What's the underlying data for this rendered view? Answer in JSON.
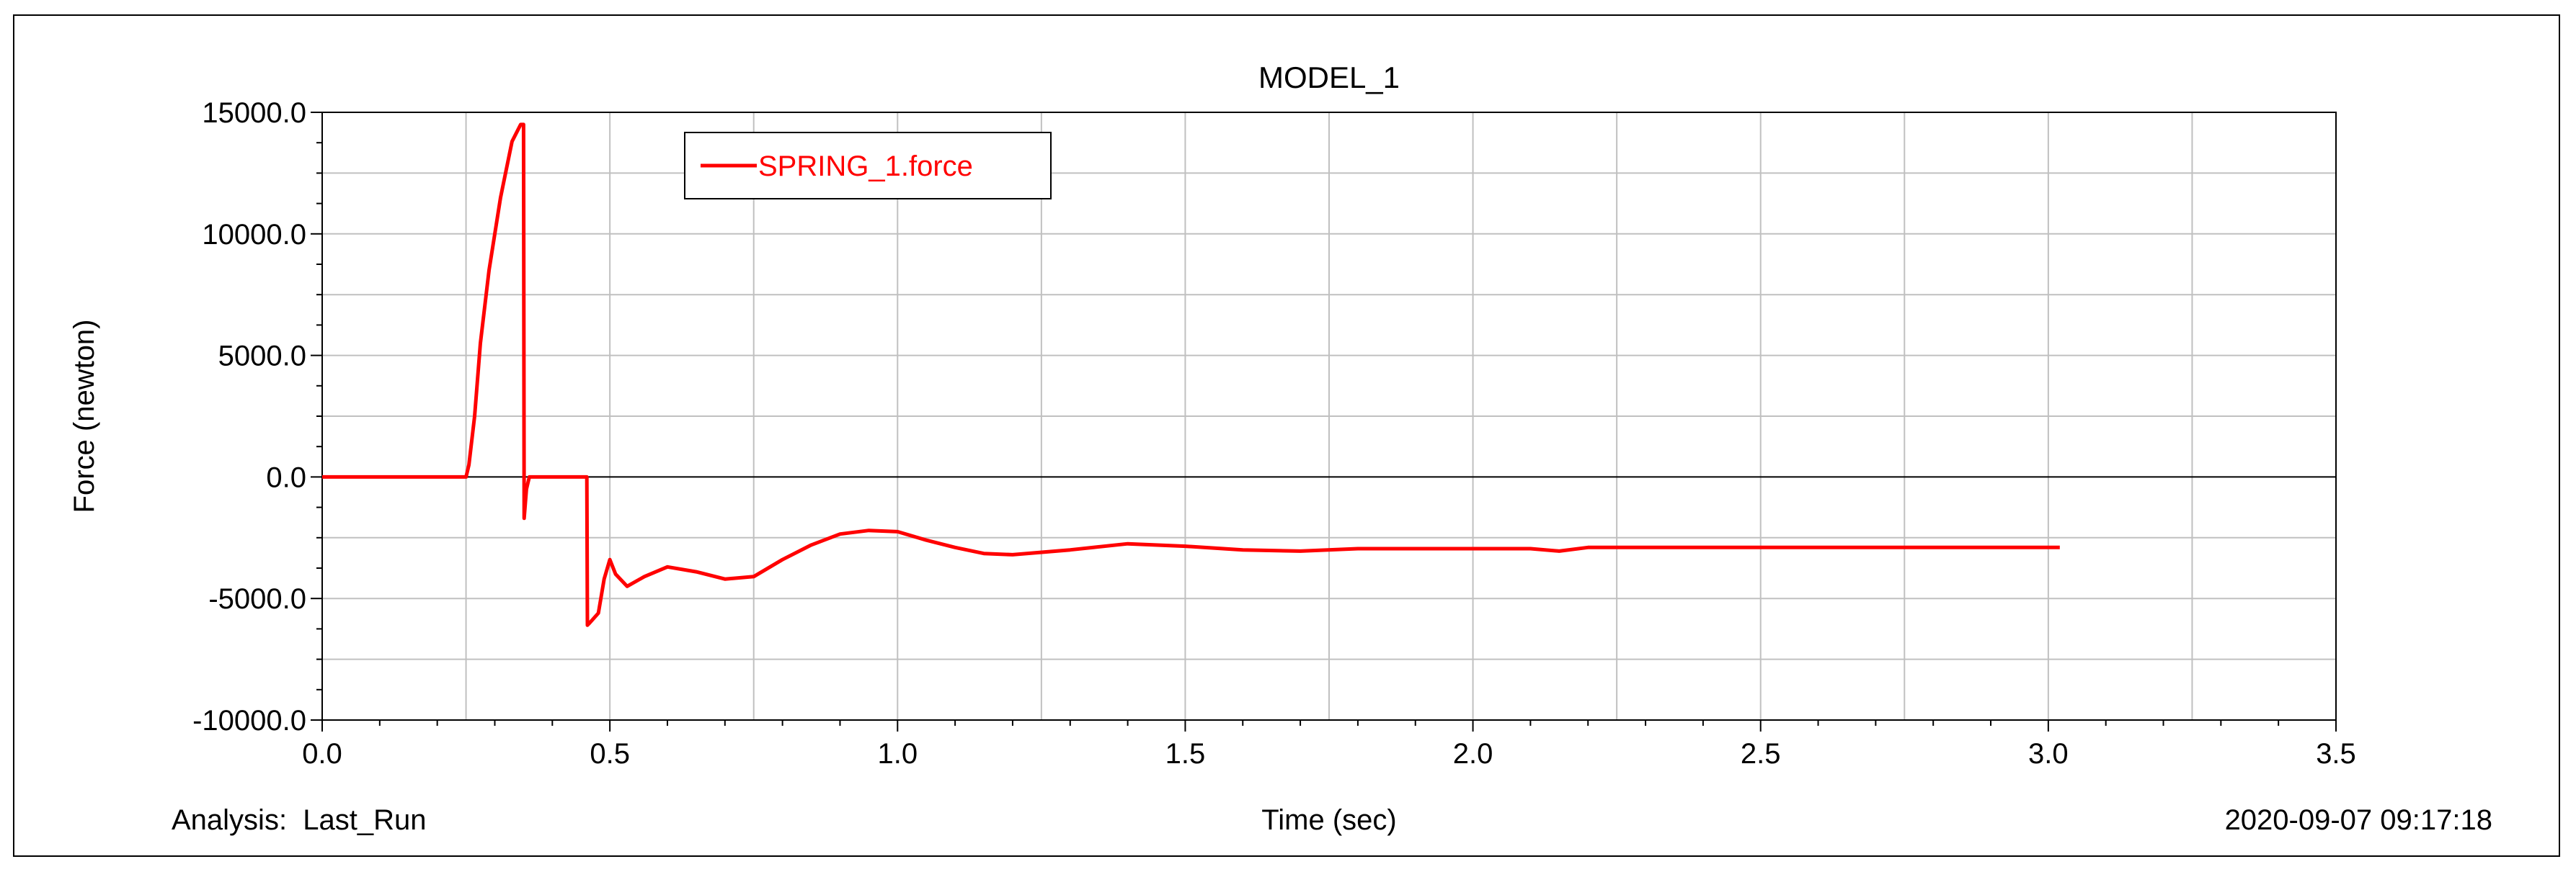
{
  "footer": {
    "analysis": "Analysis:  Last_Run",
    "timestamp": "2020-09-07 09:17:18"
  },
  "colors": {
    "series": "#ff0000",
    "grid": "#c0c0c0",
    "axis": "#000000",
    "background": "#ffffff"
  },
  "chart_data": {
    "type": "line",
    "title": "MODEL_1",
    "xlabel": "Time (sec)",
    "ylabel": "Force (newton)",
    "xlim": [
      0.0,
      3.5
    ],
    "ylim": [
      -10000.0,
      15000.0
    ],
    "xticks": [
      "0.0",
      "0.5",
      "1.0",
      "1.5",
      "2.0",
      "2.5",
      "3.0",
      "3.5"
    ],
    "xtick_values": [
      0,
      0.5,
      1.0,
      1.5,
      2.0,
      2.5,
      3.0,
      3.5
    ],
    "yticks": [
      "15000.0",
      "10000.0",
      "5000.0",
      "0.0",
      "-5000.0",
      "-10000.0"
    ],
    "ytick_values": [
      15000,
      10000,
      5000,
      0,
      -5000,
      -10000
    ],
    "grid": true,
    "legend_position": "top-left",
    "series": [
      {
        "name": "SPRING_1.force",
        "color": "#ff0000",
        "x": [
          0.0,
          0.25,
          0.255,
          0.265,
          0.275,
          0.29,
          0.31,
          0.33,
          0.345,
          0.35,
          0.351,
          0.355,
          0.36,
          0.365,
          0.39,
          0.46,
          0.461,
          0.465,
          0.48,
          0.49,
          0.5,
          0.51,
          0.53,
          0.56,
          0.6,
          0.65,
          0.7,
          0.75,
          0.8,
          0.85,
          0.9,
          0.95,
          1.0,
          1.05,
          1.1,
          1.15,
          1.2,
          1.3,
          1.4,
          1.5,
          1.6,
          1.7,
          1.8,
          2.0,
          2.1,
          2.15,
          2.2,
          2.5,
          2.8,
          3.02
        ],
        "y": [
          0,
          0,
          500,
          2500,
          5500,
          8500,
          11500,
          13800,
          14500,
          14500,
          -1700,
          -500,
          0,
          0,
          0,
          0,
          -6100,
          -6000,
          -5600,
          -4200,
          -3400,
          -4000,
          -4500,
          -4100,
          -3700,
          -3900,
          -4200,
          -4100,
          -3400,
          -2800,
          -2350,
          -2200,
          -2250,
          -2600,
          -2900,
          -3150,
          -3200,
          -3000,
          -2750,
          -2850,
          -3000,
          -3050,
          -2950,
          -2950,
          -2950,
          -3050,
          -2900,
          -2900,
          -2900,
          -2900
        ]
      }
    ]
  }
}
